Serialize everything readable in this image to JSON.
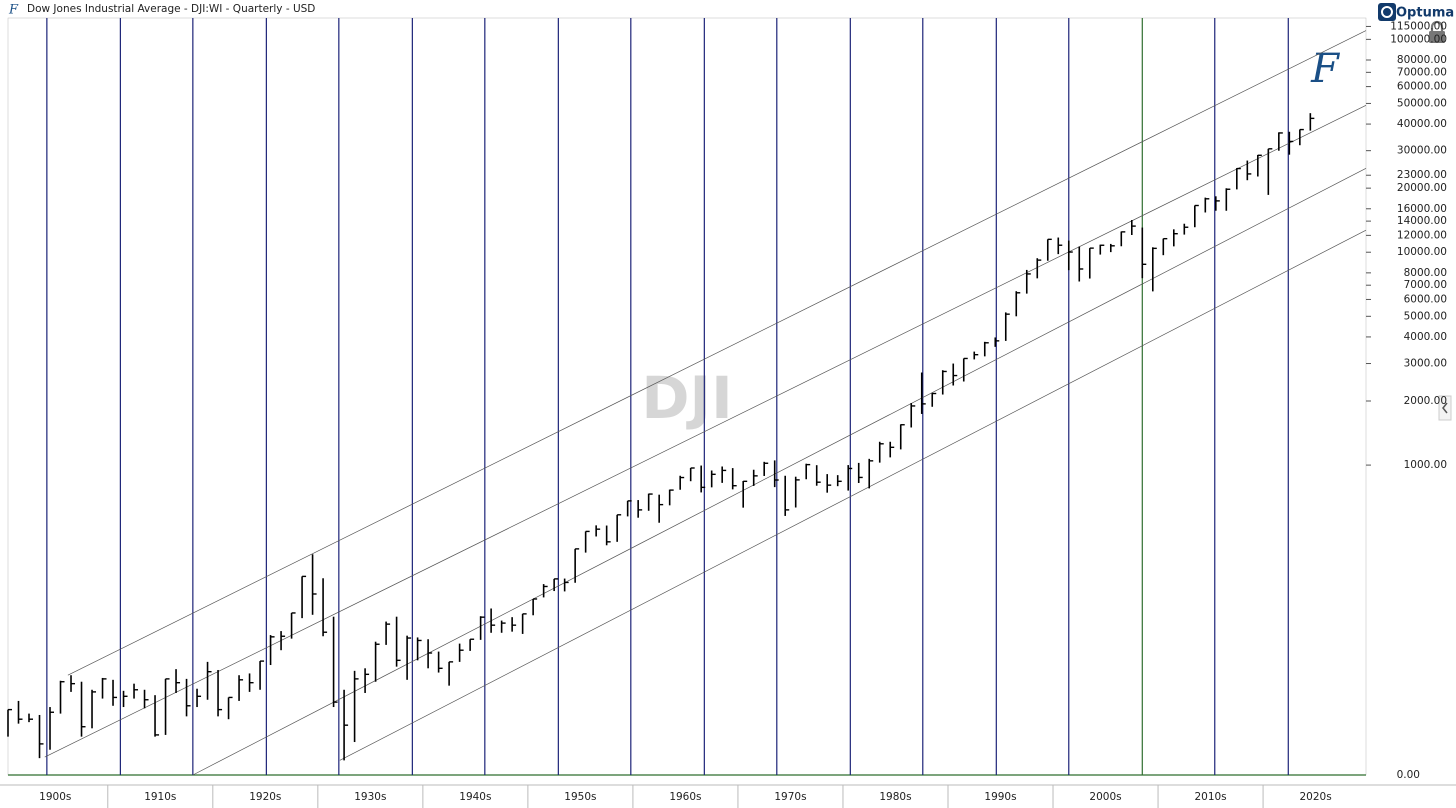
{
  "chart_data": {
    "type": "ohlc",
    "title": "Dow Jones Industrial Average - DJI:WI - Quarterly - USD",
    "watermark": "DJI",
    "brand": "Optuma",
    "logo": "F",
    "color": "#000000",
    "log_scale": true,
    "xlim": [
      1900.5,
      2029.8
    ],
    "ylim": [
      35,
      126000
    ],
    "xticks": [
      {
        "value": 1905,
        "label": "1900s"
      },
      {
        "value": 1915,
        "label": "1910s"
      },
      {
        "value": 1925,
        "label": "1920s"
      },
      {
        "value": 1935,
        "label": "1930s"
      },
      {
        "value": 1945,
        "label": "1940s"
      },
      {
        "value": 1955,
        "label": "1950s"
      },
      {
        "value": 1965,
        "label": "1960s"
      },
      {
        "value": 1975,
        "label": "1970s"
      },
      {
        "value": 1985,
        "label": "1980s"
      },
      {
        "value": 1995,
        "label": "1990s"
      },
      {
        "value": 2005,
        "label": "2000s"
      },
      {
        "value": 2015,
        "label": "2010s"
      },
      {
        "value": 2025,
        "label": "2020s"
      }
    ],
    "yticks": [
      {
        "value": 115000,
        "label": "115000.00"
      },
      {
        "value": 100000,
        "label": "100000.00"
      },
      {
        "value": 80000,
        "label": "80000.00"
      },
      {
        "value": 70000,
        "label": "70000.00"
      },
      {
        "value": 60000,
        "label": "60000.00"
      },
      {
        "value": 50000,
        "label": "50000.00"
      },
      {
        "value": 40000,
        "label": "40000.00"
      },
      {
        "value": 30000,
        "label": "30000.00"
      },
      {
        "value": 23000,
        "label": "23000.00"
      },
      {
        "value": 20000,
        "label": "20000.00"
      },
      {
        "value": 16000,
        "label": "16000.00"
      },
      {
        "value": 14000,
        "label": "14000.00"
      },
      {
        "value": 12000,
        "label": "12000.00"
      },
      {
        "value": 10000,
        "label": "10000.00"
      },
      {
        "value": 8000,
        "label": "8000.00"
      },
      {
        "value": 7000,
        "label": "7000.00"
      },
      {
        "value": 6000,
        "label": "6000.00"
      },
      {
        "value": 5000,
        "label": "5000.00"
      },
      {
        "value": 4000,
        "label": "4000.00"
      },
      {
        "value": 3000,
        "label": "3000.00"
      },
      {
        "value": 2000,
        "label": "2000.00"
      },
      {
        "value": 1000,
        "label": "1000.00"
      }
    ],
    "ybase_label": "0.00",
    "cycle_lines": [
      {
        "x": 1904.2,
        "color": "#1c2378"
      },
      {
        "x": 1911.2,
        "color": "#1c2378"
      },
      {
        "x": 1918.1,
        "color": "#1c2378"
      },
      {
        "x": 1925.1,
        "color": "#1c2378"
      },
      {
        "x": 1932.0,
        "color": "#1c2378"
      },
      {
        "x": 1939.0,
        "color": "#1c2378"
      },
      {
        "x": 1945.9,
        "color": "#1c2378"
      },
      {
        "x": 1952.9,
        "color": "#1c2378"
      },
      {
        "x": 1959.8,
        "color": "#1c2378"
      },
      {
        "x": 1966.8,
        "color": "#1c2378"
      },
      {
        "x": 1973.7,
        "color": "#1c2378"
      },
      {
        "x": 1980.7,
        "color": "#1c2378"
      },
      {
        "x": 1987.6,
        "color": "#1c2378"
      },
      {
        "x": 1994.6,
        "color": "#1c2378"
      },
      {
        "x": 2001.5,
        "color": "#1c2378"
      },
      {
        "x": 2008.5,
        "color": "#2f6e2f"
      },
      {
        "x": 2015.4,
        "color": "#1c2378"
      },
      {
        "x": 2022.4,
        "color": "#1c2378"
      }
    ],
    "trendlines": [
      {
        "x": [
          1906.2,
          2029.8
        ],
        "y": [
          103,
          110000
        ]
      },
      {
        "x": [
          1904.0,
          2029.8
        ],
        "y": [
          42.5,
          49000
        ]
      },
      {
        "x": [
          1918.1,
          2029.8
        ],
        "y": [
          35,
          24800
        ]
      },
      {
        "x": [
          1932.1,
          2029.8
        ],
        "y": [
          41,
          12700
        ]
      }
    ],
    "x": [
      1900,
      1901,
      1902,
      1903,
      1904,
      1905,
      1906,
      1907,
      1908,
      1909,
      1910,
      1911,
      1912,
      1913,
      1914,
      1915,
      1916,
      1917,
      1918,
      1919,
      1920,
      1921,
      1922,
      1923,
      1924,
      1925,
      1926,
      1927,
      1928,
      1929,
      1930,
      1931,
      1932,
      1933,
      1934,
      1935,
      1936,
      1937,
      1938,
      1939,
      1940,
      1941,
      1942,
      1943,
      1944,
      1945,
      1946,
      1947,
      1948,
      1949,
      1950,
      1951,
      1952,
      1953,
      1954,
      1955,
      1956,
      1957,
      1958,
      1959,
      1960,
      1961,
      1962,
      1963,
      1964,
      1965,
      1966,
      1967,
      1968,
      1969,
      1970,
      1971,
      1972,
      1973,
      1974,
      1975,
      1976,
      1977,
      1978,
      1979,
      1980,
      1981,
      1982,
      1983,
      1984,
      1985,
      1986,
      1987,
      1988,
      1989,
      1990,
      1991,
      1992,
      1993,
      1994,
      1995,
      1996,
      1997,
      1998,
      1999,
      2000,
      2001,
      2002,
      2003,
      2004,
      2005,
      2006,
      2007,
      2008,
      2009,
      2010,
      2011,
      2012,
      2013,
      2014,
      2015,
      2016,
      2017,
      2018,
      2019,
      2020,
      2021,
      2022,
      2023,
      2024
    ],
    "high": [
      71,
      78,
      68,
      67,
      73,
      97,
      103,
      96,
      88,
      100,
      98,
      87,
      94,
      88,
      83,
      99,
      110,
      99,
      89,
      119,
      109,
      81,
      103,
      105,
      120,
      159,
      166,
      202,
      300,
      381,
      294,
      194,
      88,
      108,
      111,
      148,
      184,
      194,
      158,
      155,
      152,
      133,
      119,
      145,
      152,
      195,
      212,
      186,
      193,
      200,
      235,
      276,
      292,
      293,
      404,
      488,
      521,
      520,
      584,
      679,
      685,
      734,
      726,
      767,
      891,
      969,
      995,
      943,
      985,
      968,
      842,
      951,
      1036,
      1052,
      891,
      882,
      1015,
      999,
      907,
      897,
      1000,
      1024,
      1070,
      1287,
      1287,
      1553,
      1956,
      2722,
      2183,
      2791,
      2999,
      3169,
      3413,
      3794,
      3978,
      5216,
      6560,
      8259,
      9374,
      11497,
      11723,
      11337,
      10635,
      10453,
      10854,
      10940,
      12510,
      14165,
      13058,
      10548,
      11585,
      12810,
      13610,
      16577,
      18053,
      18312,
      19975,
      24838,
      26951,
      28645,
      30606,
      36565,
      36800,
      37710,
      45014
    ],
    "low": [
      53,
      61,
      62,
      42,
      46,
      68,
      86,
      53,
      58,
      80,
      74,
      73,
      80,
      72,
      53,
      54,
      85,
      66,
      73,
      79,
      66,
      64,
      78,
      86,
      88,
      115,
      135,
      153,
      191,
      198,
      157,
      73,
      41,
      50,
      85,
      96,
      143,
      113,
      98,
      121,
      111,
      106,
      92,
      119,
      134,
      151,
      163,
      163,
      165,
      161,
      197,
      239,
      256,
      255,
      280,
      388,
      462,
      420,
      436,
      574,
      566,
      610,
      536,
      647,
      766,
      840,
      744,
      786,
      825,
      769,
      631,
      798,
      889,
      788,
      577,
      632,
      858,
      800,
      742,
      796,
      759,
      824,
      777,
      1027,
      1087,
      1185,
      1502,
      1739,
      1879,
      2145,
      2365,
      2470,
      3137,
      3242,
      3593,
      3832,
      5000,
      6391,
      7539,
      9120,
      9796,
      8236,
      7286,
      7524,
      9749,
      10012,
      10667,
      12050,
      7552,
      6547,
      9686,
      10655,
      12101,
      13104,
      15372,
      15666,
      15660,
      19732,
      21792,
      22686,
      18591,
      29982,
      28725,
      31819,
      37266
    ],
    "close": [
      71,
      64,
      64,
      49,
      69,
      96,
      94,
      59,
      86,
      99,
      81,
      82,
      88,
      79,
      54,
      99,
      95,
      74,
      82,
      107,
      71,
      81,
      98,
      95,
      120,
      156,
      157,
      202,
      300,
      248,
      164,
      77,
      60,
      99,
      104,
      144,
      179,
      121,
      154,
      150,
      131,
      111,
      119,
      135,
      152,
      193,
      177,
      181,
      177,
      200,
      235,
      269,
      292,
      281,
      404,
      488,
      500,
      436,
      584,
      679,
      616,
      731,
      652,
      763,
      874,
      969,
      786,
      905,
      944,
      800,
      839,
      890,
      1020,
      851,
      616,
      852,
      1005,
      831,
      805,
      839,
      964,
      875,
      1047,
      1259,
      1212,
      1547,
      1896,
      1939,
      2169,
      2753,
      2634,
      3169,
      3301,
      3754,
      3834,
      5117,
      6448,
      7908,
      9181,
      11497,
      10787,
      10021,
      8342,
      10454,
      10783,
      10718,
      12463,
      13265,
      8776,
      10428,
      11578,
      12218,
      13104,
      16577,
      17823,
      17425,
      19763,
      24719,
      23327,
      28538,
      30606,
      36338,
      33147,
      37690,
      42544
    ]
  }
}
